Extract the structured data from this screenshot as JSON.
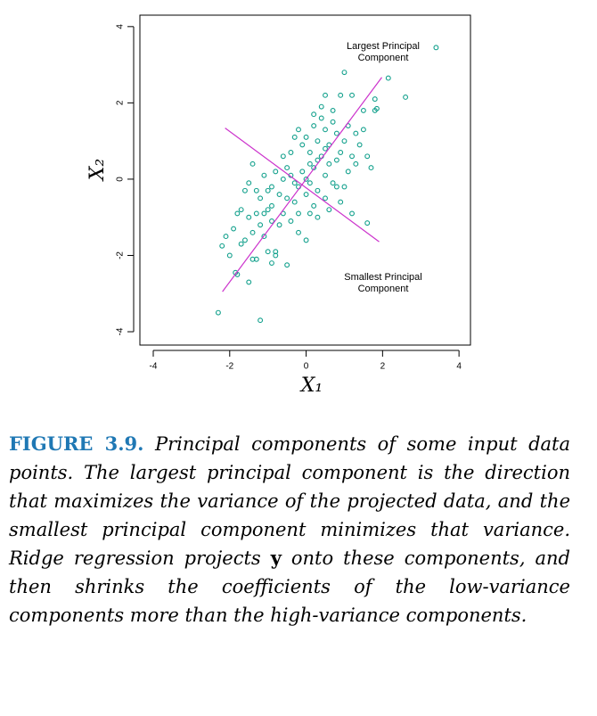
{
  "chart_data": {
    "type": "scatter",
    "x_label": "X₁",
    "y_label": "X₂",
    "xlim": [
      -4.35,
      4.3
    ],
    "ylim": [
      -4.35,
      4.3
    ],
    "xticks": [
      -4,
      -2,
      0,
      2,
      4
    ],
    "yticks": [
      -4,
      -2,
      0,
      2,
      4
    ],
    "annotations": [
      [
        "Largest Principal",
        "Component"
      ],
      [
        "Smallest Principal",
        "Component"
      ]
    ],
    "series": [
      {
        "type": "scatter",
        "color": "#12a08c",
        "x": [
          -2.3,
          -1.2,
          -2.2,
          -1.8,
          -1.85,
          -1.5,
          -1.3,
          -1.4,
          -0.5,
          -2.0,
          -1.9,
          -1.7,
          -1.6,
          -1.5,
          -1.4,
          -1.3,
          -1.2,
          -1.1,
          -1.0,
          -0.9,
          -0.8,
          -0.8,
          -0.7,
          -0.6,
          -0.5,
          -1.2,
          -1.6,
          -1.7,
          -1.5,
          -1.4,
          -1.3,
          -1.1,
          -1.0,
          -0.9,
          -0.7,
          -0.6,
          -0.5,
          -0.4,
          -0.3,
          -0.2,
          -0.1,
          0.0,
          0.1,
          0.2,
          0.3,
          0.4,
          0.5,
          0.6,
          0.7,
          -0.4,
          -0.3,
          -0.2,
          0.0,
          0.1,
          0.2,
          0.3,
          0.5,
          0.8,
          0.9,
          1.0,
          1.2,
          1.6,
          -0.6,
          -0.4,
          -0.3,
          -0.2,
          -0.1,
          0.0,
          0.1,
          0.2,
          0.3,
          0.4,
          0.5,
          0.6,
          0.7,
          0.8,
          0.9,
          1.0,
          1.1,
          1.2,
          1.3,
          1.4,
          1.5,
          1.6,
          1.7,
          1.5,
          1.8,
          1.85,
          1.2,
          0.9,
          0.5,
          1.0,
          1.8,
          2.15,
          2.6,
          3.4,
          0.2,
          0.4,
          0.7,
          -0.8,
          -0.9,
          -1.8,
          -2.1,
          -1.0,
          -0.9,
          0.1,
          0.3,
          0.6,
          1.1,
          1.3,
          0.8,
          -0.2,
          0.5,
          -1.1,
          0.0
        ],
        "values": [
          -3.5,
          -3.7,
          -1.75,
          -2.5,
          -2.45,
          -2.7,
          -2.1,
          -2.1,
          -2.25,
          -2.0,
          -1.3,
          -1.7,
          -1.6,
          -1.0,
          -1.4,
          -0.9,
          -1.2,
          -1.5,
          -0.8,
          -1.1,
          -1.9,
          -2.0,
          -1.2,
          -0.9,
          -0.5,
          -0.5,
          -0.3,
          -0.8,
          -0.1,
          0.4,
          -0.3,
          0.1,
          -0.3,
          -0.7,
          -0.4,
          0.0,
          0.3,
          0.1,
          -0.1,
          -0.2,
          0.2,
          0.0,
          -0.1,
          0.3,
          -0.3,
          0.6,
          0.1,
          0.4,
          -0.1,
          -1.1,
          -0.6,
          -1.4,
          -1.6,
          -0.9,
          -0.7,
          -1.0,
          -0.5,
          -0.2,
          -0.6,
          -0.2,
          -0.9,
          -1.15,
          0.6,
          0.7,
          1.1,
          1.3,
          0.9,
          1.1,
          0.7,
          1.4,
          1.0,
          1.6,
          1.3,
          0.9,
          1.5,
          1.2,
          0.7,
          1.0,
          1.4,
          0.6,
          1.2,
          0.9,
          1.3,
          0.6,
          0.3,
          1.8,
          1.8,
          1.85,
          2.2,
          2.2,
          2.2,
          2.8,
          2.1,
          2.65,
          2.15,
          3.45,
          1.7,
          1.9,
          1.8,
          0.2,
          -0.2,
          -0.9,
          -1.5,
          -1.9,
          -2.2,
          0.4,
          0.5,
          -0.8,
          0.2,
          0.4,
          0.5,
          -0.9,
          0.8,
          -0.9,
          -0.4
        ]
      },
      {
        "type": "line",
        "color": "#cc33cc",
        "x": [
          -2.19,
          1.98
        ],
        "values": [
          -2.95,
          2.67
        ]
      },
      {
        "type": "line",
        "color": "#cc33cc",
        "x": [
          -2.12,
          1.91
        ],
        "values": [
          1.34,
          -1.64
        ]
      }
    ]
  },
  "caption": {
    "label": "FIGURE 3.9.",
    "parts": [
      "Principal components of some input data points. The largest principal component is the direction that maximizes the variance of the projected data, and the smallest principal component minimizes that variance. Ridge regression projects",
      "y",
      "onto these components, and then shrinks the coefficients of the low-variance components more than the high-variance components."
    ]
  }
}
